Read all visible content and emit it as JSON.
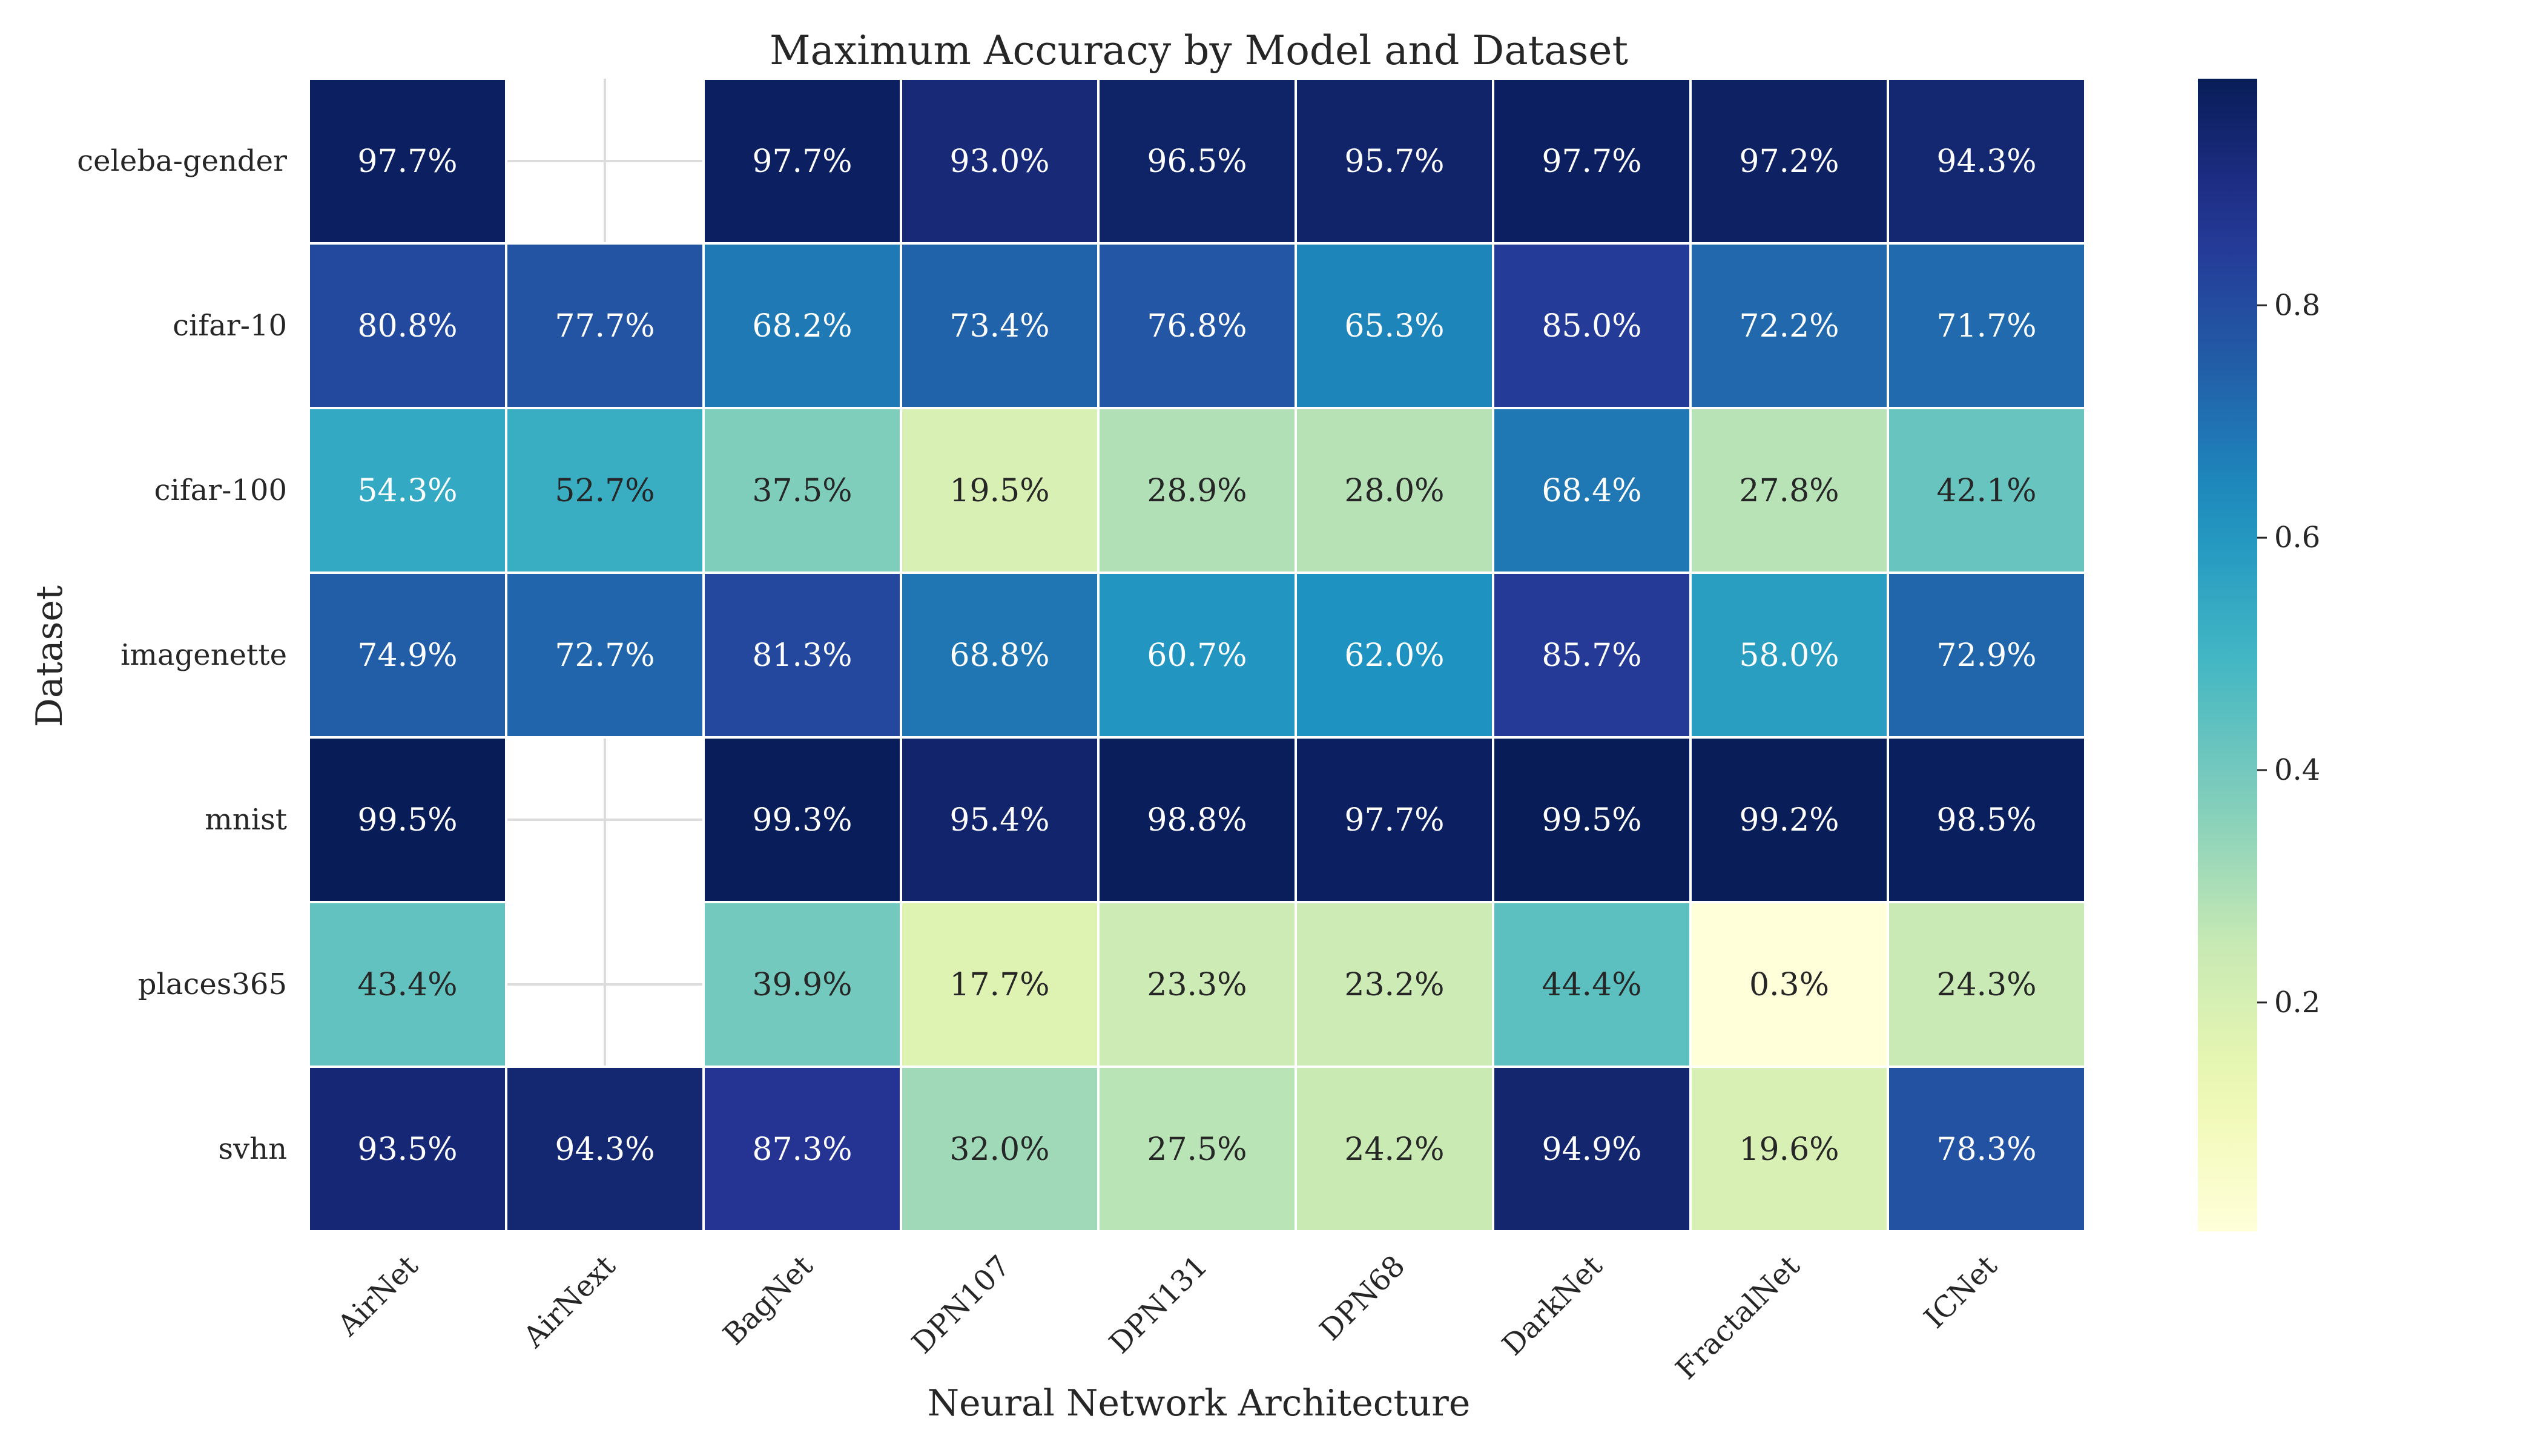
{
  "chart_data": {
    "type": "heatmap",
    "title": "Maximum Accuracy by Model and Dataset",
    "xlabel": "Neural Network Architecture",
    "ylabel": "Dataset",
    "columns": [
      "AirNet",
      "AirNext",
      "BagNet",
      "DPN107",
      "DPN131",
      "DPN68",
      "DarkNet",
      "FractalNet",
      "ICNet"
    ],
    "rows": [
      "celeba-gender",
      "cifar-10",
      "cifar-100",
      "imagenette",
      "mnist",
      "places365",
      "svhn"
    ],
    "values": [
      [
        0.977,
        null,
        0.977,
        0.93,
        0.965,
        0.957,
        0.977,
        0.972,
        0.943
      ],
      [
        0.808,
        0.777,
        0.682,
        0.734,
        0.768,
        0.653,
        0.85,
        0.722,
        0.717
      ],
      [
        0.543,
        0.527,
        0.375,
        0.195,
        0.289,
        0.28,
        0.684,
        0.278,
        0.421
      ],
      [
        0.749,
        0.727,
        0.813,
        0.688,
        0.607,
        0.62,
        0.857,
        0.58,
        0.729
      ],
      [
        0.995,
        null,
        0.993,
        0.954,
        0.988,
        0.977,
        0.995,
        0.992,
        0.985
      ],
      [
        0.434,
        null,
        0.399,
        0.177,
        0.233,
        0.232,
        0.444,
        0.003,
        0.243
      ],
      [
        0.935,
        0.943,
        0.873,
        0.32,
        0.275,
        0.242,
        0.949,
        0.196,
        0.783
      ]
    ],
    "annotations": [
      [
        "97.7%",
        "",
        "97.7%",
        "93.0%",
        "96.5%",
        "95.7%",
        "97.7%",
        "97.2%",
        "94.3%"
      ],
      [
        "80.8%",
        "77.7%",
        "68.2%",
        "73.4%",
        "76.8%",
        "65.3%",
        "85.0%",
        "72.2%",
        "71.7%"
      ],
      [
        "54.3%",
        "52.7%",
        "37.5%",
        "19.5%",
        "28.9%",
        "28.0%",
        "68.4%",
        "27.8%",
        "42.1%"
      ],
      [
        "74.9%",
        "72.7%",
        "81.3%",
        "68.8%",
        "60.7%",
        "62.0%",
        "85.7%",
        "58.0%",
        "72.9%"
      ],
      [
        "99.5%",
        "",
        "99.3%",
        "95.4%",
        "98.8%",
        "97.7%",
        "99.5%",
        "99.2%",
        "98.5%"
      ],
      [
        "43.4%",
        "",
        "39.9%",
        "17.7%",
        "23.3%",
        "23.2%",
        "44.4%",
        "0.3%",
        "24.3%"
      ],
      [
        "93.5%",
        "94.3%",
        "87.3%",
        "32.0%",
        "27.5%",
        "24.2%",
        "94.9%",
        "19.6%",
        "78.3%"
      ]
    ],
    "colorbar": {
      "colormap": "YlGnBu",
      "vmin": 0.003,
      "vmax": 0.995,
      "ticks": [
        0.2,
        0.4,
        0.6,
        0.8
      ],
      "tick_labels": [
        "0.2",
        "0.4",
        "0.6",
        "0.8"
      ]
    },
    "grid": true,
    "missing_cells": "blank"
  }
}
